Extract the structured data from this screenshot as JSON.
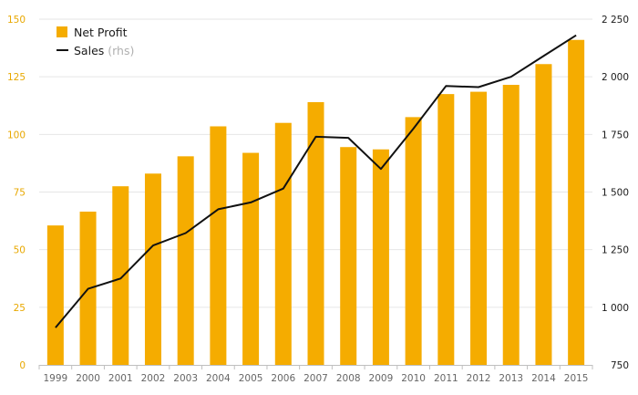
{
  "chart_data": {
    "type": "bar",
    "categories": [
      "1999",
      "2000",
      "2001",
      "2002",
      "2003",
      "2004",
      "2005",
      "2006",
      "2007",
      "2008",
      "2009",
      "2010",
      "2011",
      "2012",
      "2013",
      "2014",
      "2015"
    ],
    "series": [
      {
        "name": "Net Profit",
        "type": "bar",
        "axis": "left",
        "color": "#f5ac00",
        "values": [
          60.5,
          66.5,
          77.5,
          83,
          90.5,
          103.5,
          92,
          105,
          114,
          94.5,
          93.5,
          107.5,
          117.5,
          118.5,
          121.5,
          130.5,
          141
        ]
      },
      {
        "name": "Sales",
        "name_suffix": "(rhs)",
        "type": "line",
        "axis": "right",
        "color": "#111111",
        "values": [
          912,
          1080,
          1125,
          1268,
          1322,
          1425,
          1455,
          1515,
          1740,
          1735,
          1600,
          1775,
          1960,
          1955,
          2000,
          2090,
          2180
        ]
      }
    ],
    "y_left": {
      "lim": [
        0,
        150
      ],
      "ticks": [
        "0",
        "25",
        "50",
        "75",
        "100",
        "125",
        "150"
      ],
      "values": [
        0,
        25,
        50,
        75,
        100,
        125,
        150
      ]
    },
    "y_right": {
      "lim": [
        750,
        2250
      ],
      "ticks": [
        "750",
        "1 000",
        "1 250",
        "1 500",
        "1 750",
        "2 000",
        "2 250"
      ],
      "values": [
        750,
        1000,
        1250,
        1500,
        1750,
        2000,
        2250
      ]
    },
    "legend": {
      "position": "top-left"
    },
    "grid": true
  }
}
